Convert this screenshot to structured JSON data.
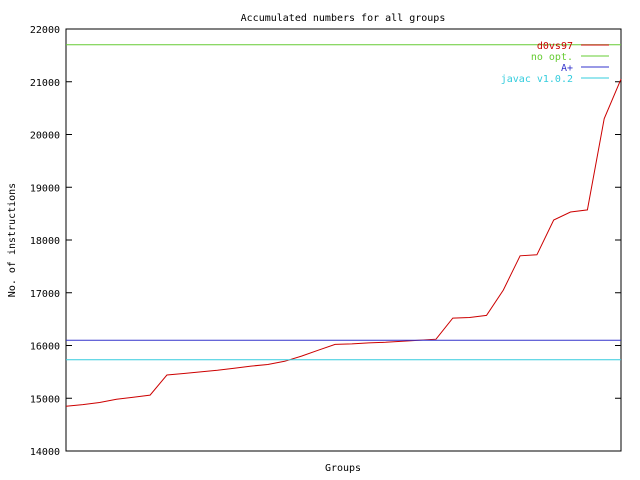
{
  "chart_data": {
    "type": "line",
    "title": "Accumulated numbers for all groups",
    "xlabel": "Groups",
    "ylabel": "No. of instructions",
    "ylim": [
      14000,
      22000
    ],
    "yticks": [
      14000,
      15000,
      16000,
      17000,
      18000,
      19000,
      20000,
      21000,
      22000
    ],
    "grid": false,
    "legend_position": "top-right",
    "series": [
      {
        "name": "d0vs97",
        "color": "#cc0000",
        "x": [
          0,
          1,
          2,
          3,
          4,
          5,
          6,
          7,
          8,
          9,
          10,
          11,
          12,
          13,
          14,
          15,
          16,
          17,
          18,
          19,
          20,
          21,
          22,
          23,
          24,
          25,
          26,
          27,
          28,
          29,
          30,
          31,
          32,
          33
        ],
        "values": [
          14850,
          14880,
          14920,
          14980,
          15020,
          15060,
          15440,
          15470,
          15500,
          15530,
          15570,
          15610,
          15640,
          15700,
          15800,
          15910,
          16020,
          16030,
          16050,
          16060,
          16080,
          16100,
          16120,
          16520,
          16530,
          16570,
          17050,
          17700,
          17720,
          18380,
          18530,
          18570,
          20300,
          21050
        ]
      },
      {
        "name": "no opt.",
        "color": "#66cc33",
        "x": [
          0,
          33
        ],
        "values": [
          21700,
          21700
        ]
      },
      {
        "name": "A+",
        "color": "#3333cc",
        "x": [
          0,
          33
        ],
        "values": [
          16100,
          16100
        ]
      },
      {
        "name": "javac v1.0.2",
        "color": "#33ccdd",
        "x": [
          0,
          33
        ],
        "values": [
          15730,
          15730
        ]
      }
    ]
  }
}
